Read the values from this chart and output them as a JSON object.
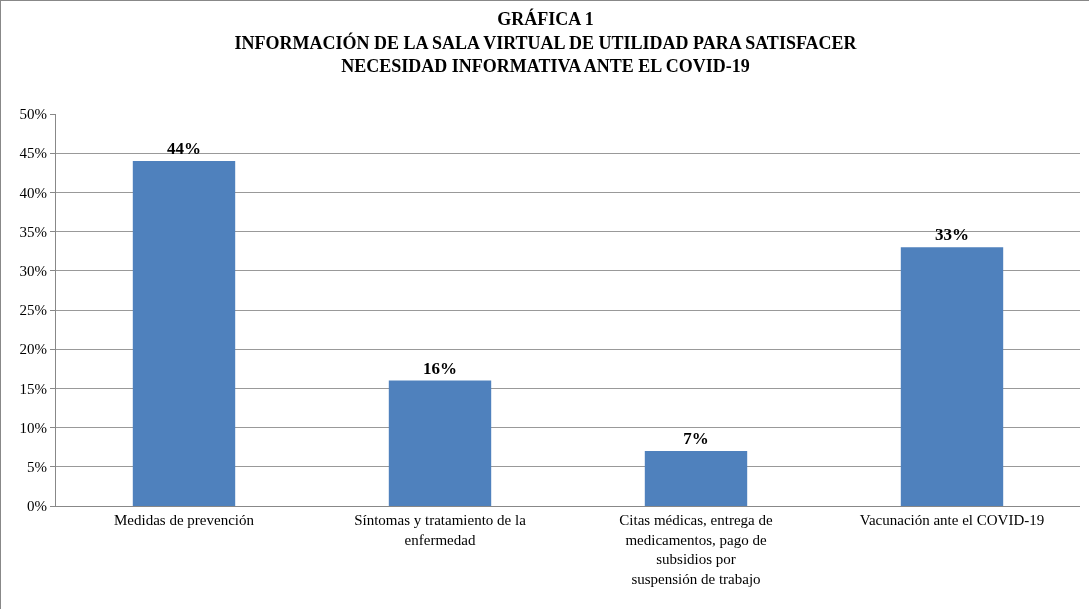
{
  "chart_data": {
    "type": "bar",
    "title": "GRÁFICA 1\nINFORMACIÓN DE LA SALA VIRTUAL DE UTILIDAD PARA SATISFACER\nNECESIDAD INFORMATIVA ANTE EL COVID-19",
    "categories": [
      "Medidas de prevención",
      "Síntomas y tratamiento de la enfermedad",
      "Citas médicas, entrega de medicamentos, pago de subsidios por\nsuspensión de trabajo",
      "Vacunación ante el COVID-19"
    ],
    "values": [
      44,
      16,
      7,
      33
    ],
    "value_labels": [
      "44%",
      "16%",
      "7%",
      "33%"
    ],
    "color": "#4f81bd",
    "ylim": [
      0,
      50
    ],
    "yticks": [
      {
        "value": 0,
        "label": "0%"
      },
      {
        "value": 5,
        "label": "5%"
      },
      {
        "value": 10,
        "label": "10%"
      },
      {
        "value": 15,
        "label": "15%"
      },
      {
        "value": 20,
        "label": "20%"
      },
      {
        "value": 25,
        "label": "25%"
      },
      {
        "value": 30,
        "label": "30%"
      },
      {
        "value": 35,
        "label": "35%"
      },
      {
        "value": 40,
        "label": "40%"
      },
      {
        "value": 45,
        "label": "45%"
      },
      {
        "value": 50,
        "label": "50%"
      }
    ],
    "grid": "y"
  }
}
